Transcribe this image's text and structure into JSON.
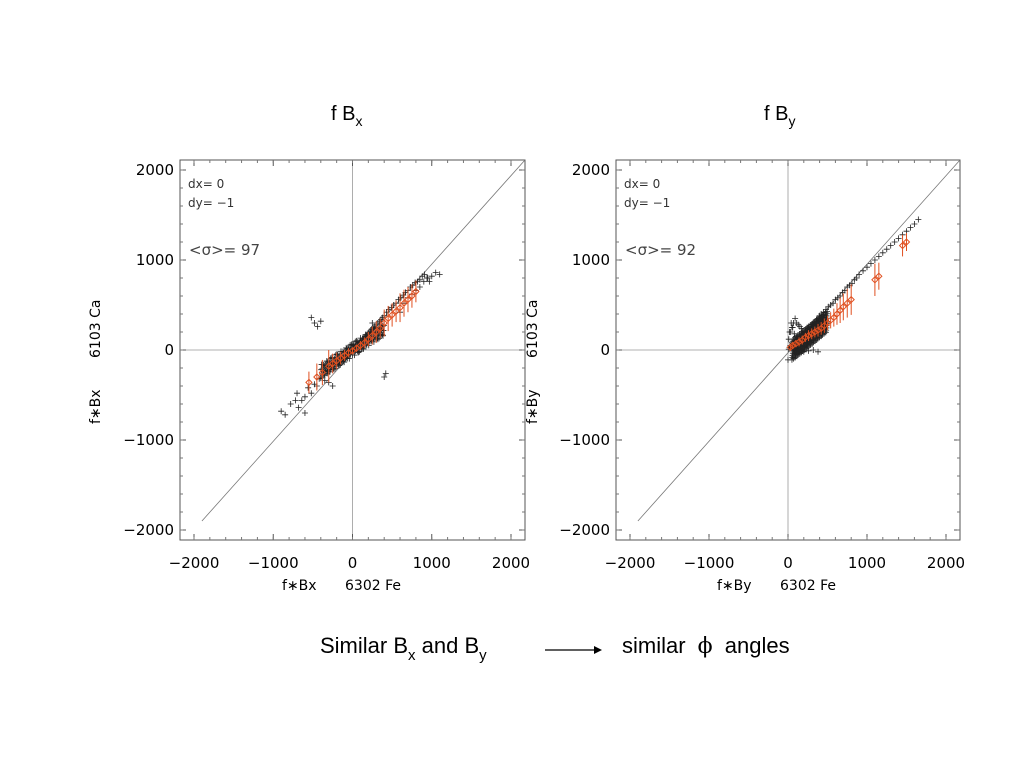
{
  "caption": {
    "left_main": "Similar B",
    "left_sub1": "x",
    "left_mid": " and B",
    "left_sub2": "y",
    "right_main": "similar ",
    "phi": "ϕ",
    "right_tail": " angles"
  },
  "chart_data": [
    {
      "type": "scatter",
      "title_main": "f B",
      "title_sub": "x",
      "xlabel_left": "f∗Bx",
      "xlabel_right": "6302 Fe",
      "ylabel_left": "f∗Bx",
      "ylabel_right": "6103 Ca",
      "xlim": [
        -2000,
        2000
      ],
      "ylim": [
        -2000,
        2000
      ],
      "xticks": [
        "−2000",
        "−1000",
        "0",
        "1000",
        "2000"
      ],
      "yticks": [
        "−2000",
        "−1000",
        "0",
        "1000",
        "2000"
      ],
      "annotations": {
        "dx": "dx=   0",
        "dy": "dy=  −1",
        "sigma": "<σ>= 97"
      },
      "series": [
        {
          "marker": "plus",
          "color": "#222222",
          "x": [
            -900,
            -850,
            -780,
            -720,
            -680,
            -640,
            -600,
            -560,
            -520,
            -480,
            -450,
            -420,
            -380,
            -350,
            -320,
            -300,
            -280,
            -250,
            -220,
            -200,
            -180,
            -160,
            -140,
            -120,
            -100,
            -80,
            -60,
            -40,
            -20,
            0,
            20,
            40,
            60,
            80,
            100,
            120,
            140,
            160,
            180,
            200,
            220,
            240,
            260,
            280,
            300,
            320,
            340,
            360,
            380,
            400,
            430,
            460,
            490,
            520,
            550,
            580,
            610,
            640,
            670,
            700,
            730,
            760,
            790,
            820,
            850,
            880,
            910,
            940,
            970,
            1000,
            1050,
            1100,
            -520,
            -480,
            -440,
            -400,
            400,
            420,
            -300,
            -250,
            200,
            250,
            300,
            350,
            -600,
            -700,
            600,
            650,
            700,
            750,
            800,
            850,
            900,
            950
          ],
          "y": [
            -680,
            -720,
            -600,
            -560,
            -640,
            -560,
            -520,
            -420,
            -480,
            -380,
            -400,
            -320,
            -300,
            -340,
            -260,
            -240,
            -220,
            -200,
            -180,
            -160,
            -150,
            -130,
            -110,
            -100,
            -90,
            -70,
            -50,
            -30,
            -10,
            0,
            20,
            40,
            60,
            80,
            100,
            110,
            130,
            150,
            170,
            190,
            210,
            230,
            250,
            260,
            280,
            300,
            320,
            340,
            360,
            380,
            420,
            450,
            470,
            500,
            520,
            560,
            580,
            610,
            640,
            660,
            700,
            720,
            750,
            760,
            780,
            820,
            840,
            800,
            760,
            820,
            860,
            840,
            360,
            300,
            260,
            320,
            -300,
            -260,
            -360,
            -400,
            160,
            300,
            250,
            200,
            -700,
            -480,
            420,
            520,
            580,
            620,
            660,
            700,
            760,
            800
          ]
        },
        {
          "marker": "diamond-errorbar",
          "color": "#e05020",
          "x": [
            -550,
            -450,
            -380,
            -300,
            -250,
            -200,
            -150,
            -100,
            -50,
            0,
            50,
            100,
            150,
            200,
            250,
            300,
            350,
            400,
            450,
            500,
            550,
            600,
            650,
            700,
            750,
            800
          ],
          "y": [
            -360,
            -300,
            -250,
            -180,
            -150,
            -120,
            -90,
            -60,
            -30,
            -10,
            20,
            50,
            80,
            120,
            160,
            200,
            240,
            300,
            350,
            390,
            430,
            470,
            520,
            560,
            600,
            650
          ],
          "err": [
            120,
            150,
            140,
            180,
            110,
            90,
            70,
            60,
            50,
            40,
            40,
            50,
            60,
            80,
            100,
            120,
            110,
            150,
            140,
            130,
            120,
            160,
            150,
            140,
            130,
            120
          ]
        }
      ]
    },
    {
      "type": "scatter",
      "title_main": "f B",
      "title_sub": "y",
      "xlabel_left": "f∗By",
      "xlabel_right": "6302 Fe",
      "ylabel_left": "f∗By",
      "ylabel_right": "6103 Ca",
      "xlim": [
        -2000,
        2000
      ],
      "ylim": [
        -2000,
        2000
      ],
      "xticks": [
        "−2000",
        "−1000",
        "0",
        "1000",
        "2000"
      ],
      "yticks": [
        "−2000",
        "−1000",
        "0",
        "1000",
        "2000"
      ],
      "annotations": {
        "dx": "dx=   0",
        "dy": "dy=  −1",
        "sigma": "<σ>= 92"
      },
      "series": [
        {
          "marker": "plus",
          "color": "#222222",
          "x": [
            10,
            20,
            30,
            40,
            50,
            60,
            80,
            100,
            120,
            140,
            160,
            180,
            200,
            220,
            240,
            260,
            280,
            300,
            320,
            340,
            360,
            380,
            400,
            420,
            450,
            480,
            510,
            540,
            570,
            600,
            630,
            660,
            690,
            720,
            750,
            780,
            810,
            840,
            870,
            900,
            950,
            1000,
            1050,
            1100,
            1150,
            1200,
            1250,
            1300,
            1350,
            1400,
            1450,
            1500,
            1550,
            1600,
            1650,
            30,
            50,
            70,
            90,
            110,
            130,
            150,
            170,
            60,
            100,
            140,
            200,
            260,
            320,
            380,
            10,
            20,
            40,
            60,
            80
          ],
          "y": [
            10,
            30,
            50,
            40,
            80,
            60,
            90,
            100,
            120,
            140,
            150,
            180,
            190,
            200,
            220,
            240,
            250,
            280,
            300,
            310,
            340,
            350,
            380,
            400,
            420,
            450,
            480,
            500,
            520,
            560,
            580,
            600,
            640,
            660,
            700,
            720,
            740,
            780,
            800,
            840,
            880,
            920,
            960,
            1000,
            1040,
            1080,
            1120,
            1160,
            1200,
            1240,
            1280,
            1320,
            1360,
            1400,
            1450,
            200,
            250,
            300,
            350,
            300,
            280,
            260,
            240,
            0,
            -20,
            -10,
            -20,
            -10,
            0,
            -20,
            120,
            200,
            300,
            250,
            180
          ],
          "dense": true
        },
        {
          "marker": "diamond-errorbar",
          "color": "#e05020",
          "x": [
            30,
            60,
            100,
            140,
            180,
            220,
            260,
            300,
            340,
            380,
            420,
            460,
            500,
            540,
            580,
            620,
            660,
            700,
            750,
            800,
            1100,
            1150,
            1450,
            1500
          ],
          "y": [
            30,
            50,
            70,
            90,
            110,
            140,
            160,
            180,
            200,
            220,
            240,
            270,
            300,
            330,
            360,
            400,
            440,
            480,
            520,
            560,
            780,
            820,
            1160,
            1200
          ],
          "err": [
            40,
            40,
            40,
            50,
            50,
            50,
            60,
            60,
            60,
            70,
            70,
            80,
            80,
            90,
            100,
            120,
            140,
            150,
            160,
            170,
            180,
            150,
            120,
            100
          ]
        }
      ]
    }
  ]
}
